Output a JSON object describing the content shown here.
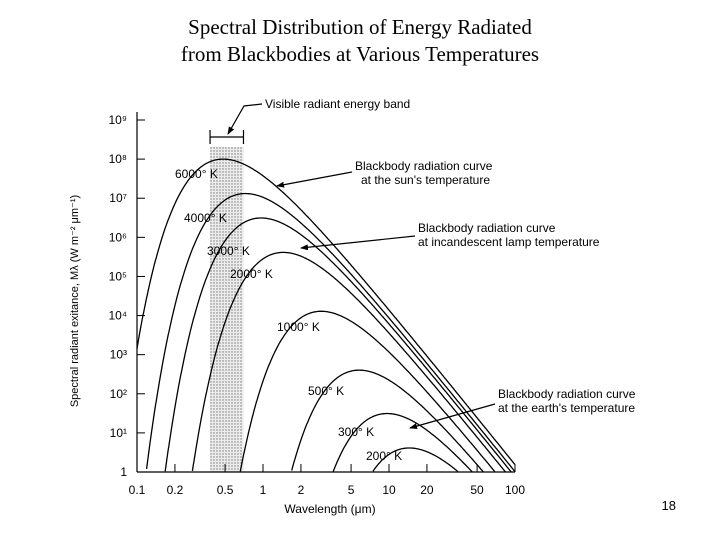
{
  "slide": {
    "title_line1": "Spectral Distribution of Energy Radiated",
    "title_line2": "from Blackbodies at Various Temperatures",
    "page_number": "18"
  },
  "chart_data": {
    "type": "line",
    "xlabel": "Wavelength (μm)",
    "ylabel": "Spectral radiant exitance, Mλ (W m⁻² μm⁻¹)",
    "xscale": "log",
    "yscale": "log",
    "xlim": [
      0.1,
      100
    ],
    "ylim": [
      1,
      1000000000
    ],
    "x_ticks": [
      "0.1",
      "0.2",
      "0.5",
      "1",
      "2",
      "5",
      "10",
      "20",
      "50",
      "100"
    ],
    "y_ticks": [
      "1",
      "10¹",
      "10²",
      "10³",
      "10⁴",
      "10⁵",
      "10⁶",
      "10⁷",
      "10⁸",
      "10⁹"
    ],
    "visible_band": {
      "label": "Visible radiant energy band",
      "range": [
        0.38,
        0.7
      ]
    },
    "series": [
      {
        "name": "6000° K",
        "temperature": 6000
      },
      {
        "name": "4000° K",
        "temperature": 4000
      },
      {
        "name": "3000° K",
        "temperature": 3000
      },
      {
        "name": "2000° K",
        "temperature": 2000
      },
      {
        "name": "1000° K",
        "temperature": 1000
      },
      {
        "name": "500° K",
        "temperature": 500
      },
      {
        "name": "300° K",
        "temperature": 300
      },
      {
        "name": "200° K",
        "temperature": 200
      }
    ],
    "annotations": [
      {
        "lines": [
          "Blackbody radiation curve",
          "at the sun's temperature"
        ],
        "target": 6000
      },
      {
        "lines": [
          "Blackbody radiation curve",
          "at incandescent lamp temperature"
        ],
        "target": 3000
      },
      {
        "lines": [
          "Blackbody radiation curve",
          "at the earth's temperature"
        ],
        "target": 300
      }
    ]
  }
}
